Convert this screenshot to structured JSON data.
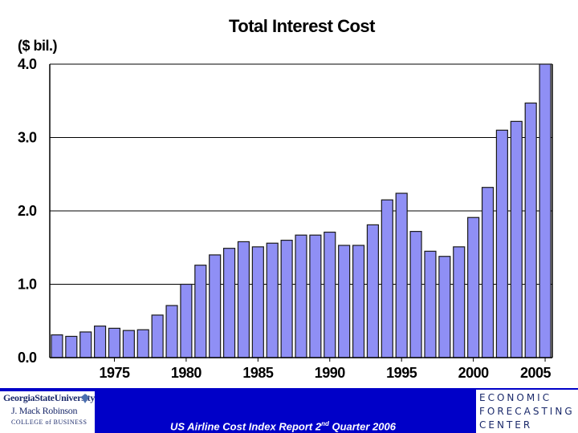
{
  "chart_data": {
    "type": "bar",
    "title": "Total Interest Cost",
    "ylabel": "($ bil.)",
    "ylim": [
      0,
      4.0
    ],
    "yticks": [
      "0.0",
      "1.0",
      "2.0",
      "3.0",
      "4.0"
    ],
    "grid": true,
    "x": [
      1971,
      1972,
      1973,
      1974,
      1975,
      1976,
      1977,
      1978,
      1979,
      1980,
      1981,
      1982,
      1983,
      1984,
      1985,
      1986,
      1987,
      1988,
      1989,
      1990,
      1991,
      1992,
      1993,
      1994,
      1995,
      1996,
      1997,
      1998,
      1999,
      2000,
      2001,
      2002,
      2003,
      2004,
      2005
    ],
    "values": [
      0.31,
      0.29,
      0.35,
      0.43,
      0.4,
      0.37,
      0.38,
      0.58,
      0.71,
      1.0,
      1.26,
      1.4,
      1.49,
      1.58,
      1.51,
      1.56,
      1.6,
      1.67,
      1.67,
      1.71,
      1.53,
      1.53,
      1.81,
      2.15,
      2.24,
      1.72,
      1.45,
      1.38,
      1.51,
      1.91,
      2.32,
      3.1,
      3.22,
      3.47,
      4.0
    ],
    "xtick_labels": [
      {
        "year": 1975,
        "label": "1975"
      },
      {
        "year": 1980,
        "label": "1980"
      },
      {
        "year": 1985,
        "label": "1985"
      },
      {
        "year": 1990,
        "label": "1990"
      },
      {
        "year": 1995,
        "label": "1995"
      },
      {
        "year": 2000,
        "label": "2000"
      },
      {
        "year": 2005,
        "label": "2005"
      }
    ]
  },
  "footer": {
    "report_prefix": "US Airline Cost Index Report 2",
    "report_sup": "nd",
    "report_suffix": " Quarter 2006",
    "left_logo": {
      "line1": "GeorgiaStateUniversity",
      "line2": "J. Mack Robinson",
      "line3": "COLLEGE of BUSINESS"
    },
    "right_logo": {
      "line1": "ECONOMIC",
      "line2": "FORECASTING",
      "line3": "CENTER"
    }
  },
  "colors": {
    "bar_fill": "#8f8ff5",
    "footer_bg": "#0000c8"
  }
}
